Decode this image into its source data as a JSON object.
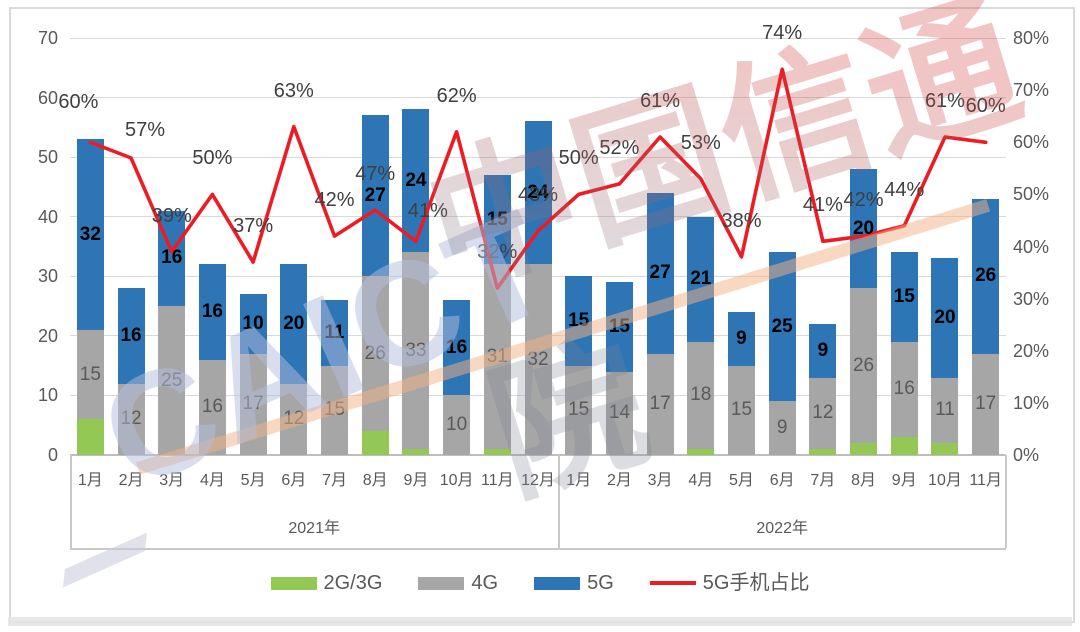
{
  "watermark": {
    "caict": "CAICT",
    "cn": "中国信通院"
  },
  "legend": {
    "items": [
      {
        "label": "2G/3G",
        "color": "#92C853",
        "type": "box"
      },
      {
        "label": "4G",
        "color": "#A6A6A6",
        "type": "box"
      },
      {
        "label": "5G",
        "color": "#2E75B6",
        "type": "box"
      },
      {
        "label": "5G手机占比",
        "color": "#EC1C24",
        "type": "line"
      }
    ]
  },
  "chart_data": {
    "type": "bar",
    "subtype": "stacked-column-with-line",
    "grid": true,
    "legend_position": "bottom",
    "categories": [
      "1月",
      "2月",
      "3月",
      "4月",
      "5月",
      "6月",
      "7月",
      "8月",
      "9月",
      "10月",
      "11月",
      "12月",
      "1月",
      "2月",
      "3月",
      "4月",
      "5月",
      "6月",
      "7月",
      "8月",
      "9月",
      "10月",
      "11月"
    ],
    "groups": [
      {
        "year": "2021年",
        "span": 12
      },
      {
        "year": "2022年",
        "span": 11
      }
    ],
    "series": [
      {
        "name": "2G/3G",
        "color": "#92C853",
        "show_labels": false,
        "values": [
          6,
          0,
          0,
          0,
          0,
          0,
          0,
          4,
          1,
          0,
          1,
          0,
          0,
          0,
          0,
          1,
          0,
          0,
          1,
          2,
          3,
          2,
          0
        ]
      },
      {
        "name": "4G",
        "color": "#A6A6A6",
        "show_labels": true,
        "values": [
          15,
          12,
          25,
          16,
          17,
          12,
          15,
          26,
          33,
          10,
          31,
          32,
          15,
          14,
          17,
          18,
          15,
          9,
          12,
          26,
          16,
          11,
          17
        ]
      },
      {
        "name": "5G",
        "color": "#2E75B6",
        "show_labels": true,
        "values": [
          32,
          16,
          16,
          16,
          10,
          20,
          11,
          27,
          24,
          16,
          15,
          24,
          15,
          15,
          27,
          21,
          9,
          25,
          9,
          20,
          15,
          20,
          26
        ]
      }
    ],
    "line": {
      "name": "5G手机占比",
      "color": "#EC1C24",
      "axis": "right",
      "label_suffix": "%",
      "values": [
        60,
        57,
        39,
        50,
        37,
        63,
        42,
        47,
        41,
        62,
        32,
        43,
        50,
        52,
        61,
        53,
        38,
        74,
        41,
        42,
        44,
        61,
        60
      ]
    },
    "left_axis": {
      "min": 0,
      "max": 70,
      "ticks": [
        0,
        10,
        20,
        30,
        40,
        50,
        60,
        70
      ]
    },
    "right_axis": {
      "min": 0,
      "max": 80,
      "ticks": [
        "0%",
        "10%",
        "20%",
        "30%",
        "40%",
        "50%",
        "60%",
        "70%",
        "80%"
      ]
    }
  }
}
